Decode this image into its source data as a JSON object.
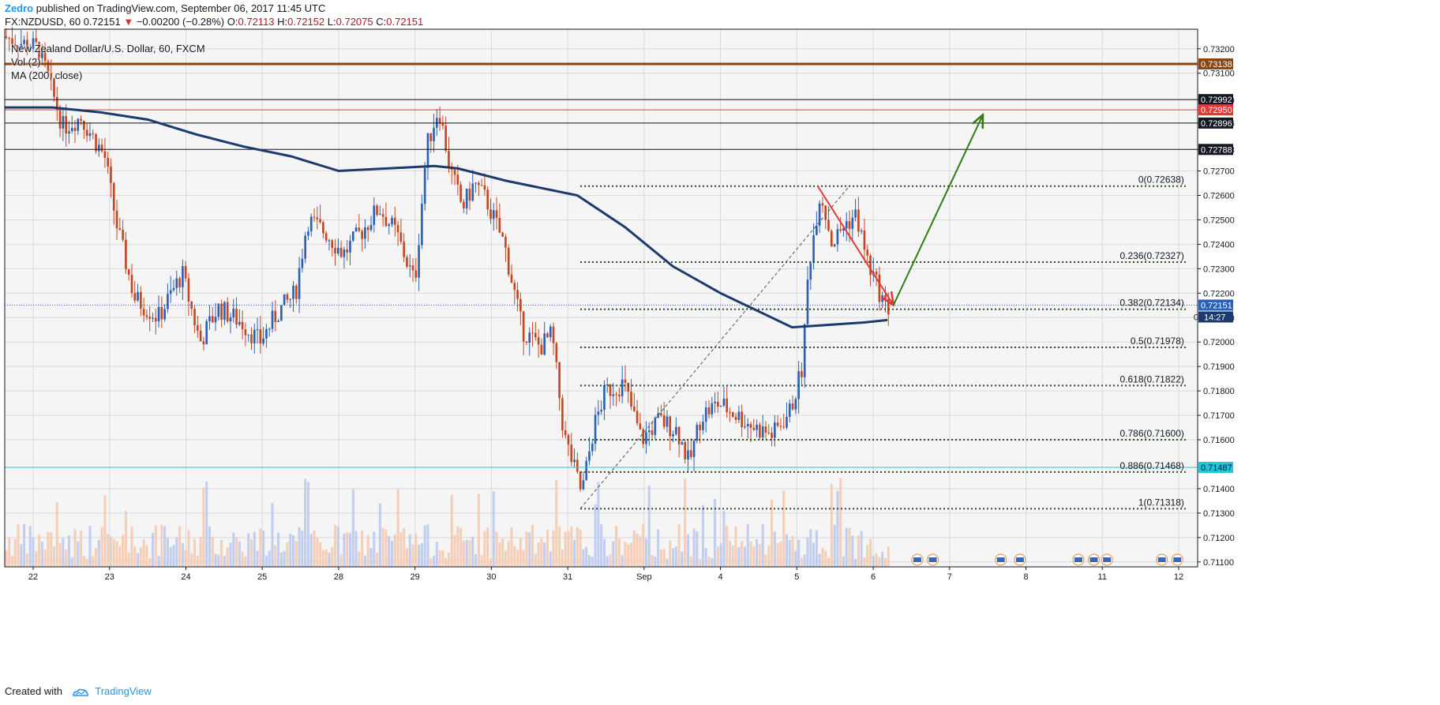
{
  "header": {
    "author": "Zedro",
    "published_text": " published on TradingView.com, September 06, 2017 11:45 UTC",
    "symbol": "FX:NZDUSD, 60",
    "last_price": "0.72151",
    "change": "−0.00200 (−0.28%)",
    "open_label": "O:",
    "open": "0.72113",
    "high_label": "H:",
    "high": "0.72152",
    "low_label": "L:",
    "low": "0.72075",
    "close_label": "C:",
    "close": "0.72151"
  },
  "legend": {
    "title": "New Zealand Dollar/U.S. Dollar, 60, FXCM",
    "vol": "Vol (2)",
    "ma": "MA (200, close)"
  },
  "footer": {
    "created_with": "Created with",
    "brand": "TradingView"
  },
  "colors": {
    "up": "#2b61b5",
    "down": "#c8461f",
    "ma": "#1d3a6e",
    "background": "#f5f5f5",
    "grid": "#d9d9d9",
    "fib": "#2a4a2a",
    "resistance_brown": "#8b4513",
    "resistance_red": "#e53935",
    "support_cyan": "#26c6da",
    "arrow_up": "#2e7d12",
    "arrow_down": "#e53935"
  },
  "chart_data": {
    "type": "candlestick",
    "symbol": "FX:NZDUSD",
    "timeframe": "60",
    "ylim": [
      0.7108,
      0.7328
    ],
    "y_ticks": [
      "0.73200",
      "0.73100",
      "0.72990",
      "0.72896",
      "0.72788",
      "0.72700",
      "0.72600",
      "0.72500",
      "0.72400",
      "0.72300",
      "0.72200",
      "0.72100",
      "0.72000",
      "0.71900",
      "0.71800",
      "0.71700",
      "0.71600",
      "0.71400",
      "0.71300",
      "0.71200",
      "0.71100"
    ],
    "x_ticks": [
      "22",
      "23",
      "24",
      "25",
      "28",
      "29",
      "30",
      "31",
      "Sep",
      "4",
      "5",
      "6",
      "7",
      "8",
      "11",
      "12"
    ],
    "horizontal_lines": [
      {
        "label": "0.73138",
        "value": 0.73138,
        "color": "#8b4513"
      },
      {
        "label": "0.72992",
        "value": 0.72992,
        "color": "#131722"
      },
      {
        "label": "0.72950",
        "value": 0.7295,
        "color": "#e53935"
      },
      {
        "label": "0.72896",
        "value": 0.72896,
        "color": "#131722"
      },
      {
        "label": "0.72788",
        "value": 0.72788,
        "color": "#131722"
      },
      {
        "label": "0.71487",
        "value": 0.71487,
        "color": "#26c6da"
      }
    ],
    "current_price": {
      "value": 0.72151,
      "label": "0.72151",
      "countdown": "14:27",
      "ma_value_label": "0"
    },
    "fibonacci": [
      {
        "ratio": "0",
        "value": 0.72638,
        "label": "0(0.72638)"
      },
      {
        "ratio": "0.236",
        "value": 0.72327,
        "label": "0.236(0.72327)"
      },
      {
        "ratio": "0.382",
        "value": 0.72134,
        "label": "0.382(0.72134)"
      },
      {
        "ratio": "0.5",
        "value": 0.71978,
        "label": "0.5(0.71978)"
      },
      {
        "ratio": "0.618",
        "value": 0.71822,
        "label": "0.618(0.71822)"
      },
      {
        "ratio": "0.786",
        "value": 0.716,
        "label": "0.786(0.71600)"
      },
      {
        "ratio": "0.886",
        "value": 0.71468,
        "label": "0.886(0.71468)"
      },
      {
        "ratio": "1",
        "value": 0.71318,
        "label": "1(0.71318)"
      }
    ],
    "ma_200": [
      [
        0,
        0.7296
      ],
      [
        0.04,
        0.7296
      ],
      [
        0.08,
        0.7294
      ],
      [
        0.12,
        0.7291
      ],
      [
        0.16,
        0.7285
      ],
      [
        0.2,
        0.728
      ],
      [
        0.24,
        0.7276
      ],
      [
        0.28,
        0.727
      ],
      [
        0.32,
        0.7271
      ],
      [
        0.36,
        0.7272
      ],
      [
        0.38,
        0.7271
      ],
      [
        0.42,
        0.7266
      ],
      [
        0.48,
        0.726
      ],
      [
        0.52,
        0.7247
      ],
      [
        0.56,
        0.7231
      ],
      [
        0.6,
        0.722
      ],
      [
        0.66,
        0.7206
      ],
      [
        0.72,
        0.7208
      ],
      [
        0.74,
        0.7209
      ]
    ],
    "candle_path_keypoints": [
      [
        0.0,
        0.7325
      ],
      [
        0.03,
        0.732
      ],
      [
        0.05,
        0.7288
      ],
      [
        0.065,
        0.7292
      ],
      [
        0.085,
        0.7276
      ],
      [
        0.095,
        0.7248
      ],
      [
        0.11,
        0.7218
      ],
      [
        0.13,
        0.721
      ],
      [
        0.15,
        0.7228
      ],
      [
        0.165,
        0.72
      ],
      [
        0.18,
        0.7214
      ],
      [
        0.2,
        0.7208
      ],
      [
        0.215,
        0.72
      ],
      [
        0.23,
        0.7212
      ],
      [
        0.245,
        0.722
      ],
      [
        0.255,
        0.725
      ],
      [
        0.27,
        0.7245
      ],
      [
        0.285,
        0.7236
      ],
      [
        0.3,
        0.7245
      ],
      [
        0.315,
        0.7255
      ],
      [
        0.33,
        0.7244
      ],
      [
        0.345,
        0.7224
      ],
      [
        0.355,
        0.728
      ],
      [
        0.365,
        0.7296
      ],
      [
        0.375,
        0.727
      ],
      [
        0.385,
        0.7255
      ],
      [
        0.395,
        0.7265
      ],
      [
        0.405,
        0.7258
      ],
      [
        0.42,
        0.724
      ],
      [
        0.435,
        0.7205
      ],
      [
        0.45,
        0.7198
      ],
      [
        0.46,
        0.7203
      ],
      [
        0.47,
        0.7162
      ],
      [
        0.485,
        0.7138
      ],
      [
        0.495,
        0.7165
      ],
      [
        0.505,
        0.718
      ],
      [
        0.52,
        0.7183
      ],
      [
        0.535,
        0.716
      ],
      [
        0.55,
        0.7168
      ],
      [
        0.565,
        0.7164
      ],
      [
        0.575,
        0.715
      ],
      [
        0.585,
        0.717
      ],
      [
        0.6,
        0.7175
      ],
      [
        0.615,
        0.717
      ],
      [
        0.63,
        0.7165
      ],
      [
        0.645,
        0.7162
      ],
      [
        0.66,
        0.7172
      ],
      [
        0.67,
        0.719
      ],
      [
        0.675,
        0.723
      ],
      [
        0.685,
        0.7262
      ],
      [
        0.695,
        0.724
      ],
      [
        0.705,
        0.7248
      ],
      [
        0.715,
        0.7252
      ],
      [
        0.725,
        0.7232
      ],
      [
        0.735,
        0.722
      ],
      [
        0.74,
        0.7214
      ]
    ],
    "annotations": [
      {
        "type": "arrow",
        "color": "#e53935",
        "from": [
          0.6815,
          0.72638
        ],
        "to": [
          0.745,
          0.72151
        ]
      },
      {
        "type": "arrow",
        "color": "#2e7d12",
        "from": [
          0.745,
          0.72151
        ],
        "to": [
          0.82,
          0.7293
        ]
      },
      {
        "type": "dashed_line",
        "from": [
          0.4825,
          0.71318
        ],
        "to": [
          0.708,
          0.72638
        ]
      }
    ]
  }
}
